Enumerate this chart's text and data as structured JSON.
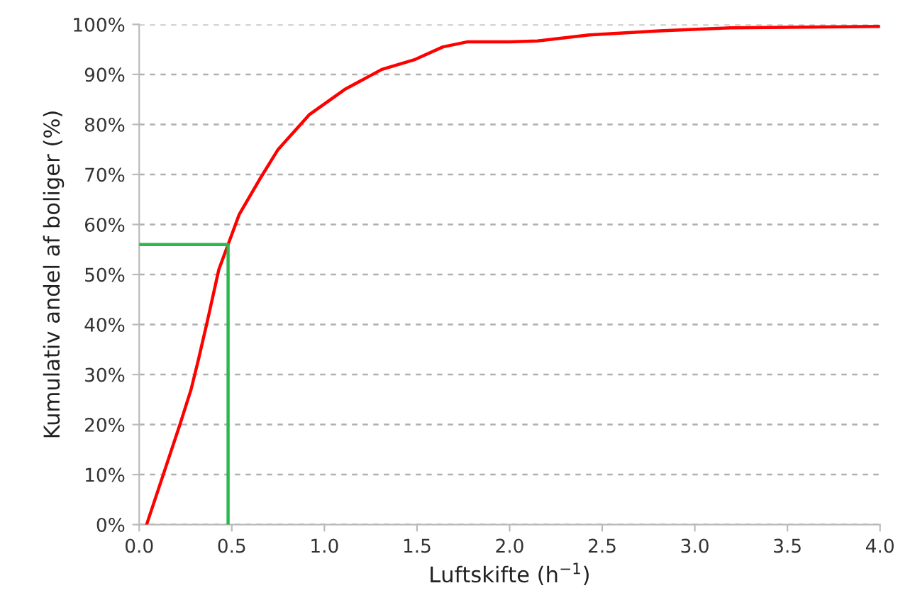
{
  "chart_data": {
    "type": "line",
    "xlabel": "Luftskifte (h$^{−1}$)",
    "ylabel": "Kumulativ andel af boliger (%)",
    "xlim": [
      0,
      4.0
    ],
    "ylim": [
      0,
      100
    ],
    "xticks": [
      {
        "value": 0,
        "label": "0.0"
      },
      0.5,
      {
        "value": 1,
        "label": "1.0"
      },
      1.5,
      {
        "value": 2,
        "label": "2.0"
      },
      2.5,
      {
        "value": 3,
        "label": "3.0"
      },
      3.5,
      {
        "value": 4,
        "label": "4.0"
      }
    ],
    "yticks": [
      {
        "value": 0,
        "label": "0%"
      },
      {
        "value": 10,
        "label": "10%"
      },
      {
        "value": 20,
        "label": "20%"
      },
      {
        "value": 30,
        "label": "30%"
      },
      {
        "value": 40,
        "label": "40%"
      },
      {
        "value": 50,
        "label": "50%"
      },
      {
        "value": 60,
        "label": "60%"
      },
      {
        "value": 70,
        "label": "70%"
      },
      {
        "value": 80,
        "label": "80%"
      },
      {
        "value": 90,
        "label": "90%"
      },
      {
        "value": 100,
        "label": "100%"
      }
    ],
    "grid": "y",
    "legend": false,
    "marker": "none",
    "line_style": "solid",
    "series": [
      {
        "color": "#ff0000",
        "x": [
          0.04,
          0.13,
          0.22,
          0.28,
          0.32,
          0.37,
          0.43,
          0.48,
          0.54,
          0.65,
          0.75,
          0.92,
          1.11,
          1.31,
          1.49,
          1.64,
          1.77,
          2.0,
          2.15,
          2.43,
          2.81,
          3.19,
          4.0
        ],
        "values": [
          0,
          10,
          20,
          27,
          33,
          41,
          51,
          56,
          62,
          69,
          75,
          82,
          87,
          91,
          93,
          95.5,
          96.5,
          96.5,
          96.7,
          97.9,
          98.7,
          99.3,
          99.6
        ]
      },
      {
        "color": "#2db84d",
        "x": [
          0,
          0.48,
          0.48
        ],
        "values": [
          56,
          56,
          0
        ]
      }
    ]
  }
}
